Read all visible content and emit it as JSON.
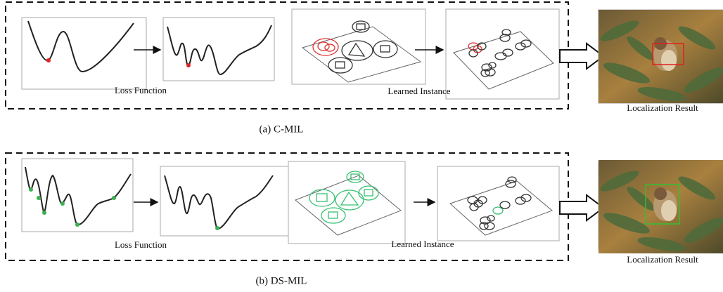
{
  "panels": [
    {
      "caption": "(a) C-MIL",
      "loss_label": "Loss Function",
      "instance_label": "Learned Instance",
      "result_label": "Localization Result"
    },
    {
      "caption": "(b) DS-MIL",
      "loss_label": "Loss Function",
      "instance_label": "Learned Instance",
      "result_label": "Localization Result"
    }
  ]
}
